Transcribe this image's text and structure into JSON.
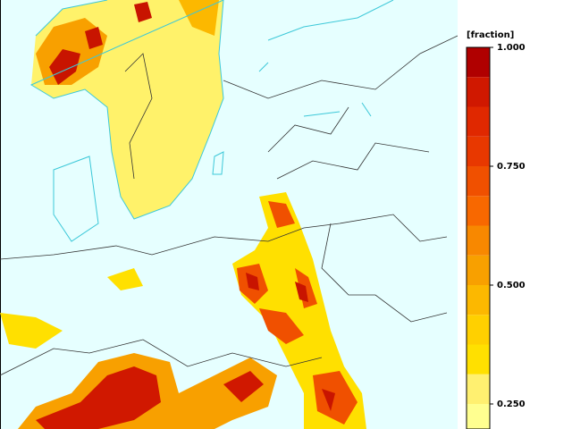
{
  "colorbar": {
    "label": "[fraction]",
    "lim": [
      0.2,
      1.0
    ],
    "levels": [
      0.1875,
      0.25,
      0.3125,
      0.375,
      0.4375,
      0.5,
      0.5625,
      0.625,
      0.6875,
      0.75,
      0.8125,
      0.875,
      0.9375,
      1.0
    ],
    "colors": [
      "#ffff90",
      "#fff070",
      "#ffe000",
      "#ffd000",
      "#fcb800",
      "#f8a000",
      "#f88800",
      "#f86800",
      "#f05000",
      "#e83800",
      "#e02800",
      "#d01800",
      "#b00000"
    ],
    "ticks": [
      {
        "value": 1.0,
        "label": "1.000"
      },
      {
        "value": 0.75,
        "label": "0.750"
      },
      {
        "value": 0.5,
        "label": "0.500"
      },
      {
        "value": 0.25,
        "label": "0.250"
      }
    ]
  }
}
